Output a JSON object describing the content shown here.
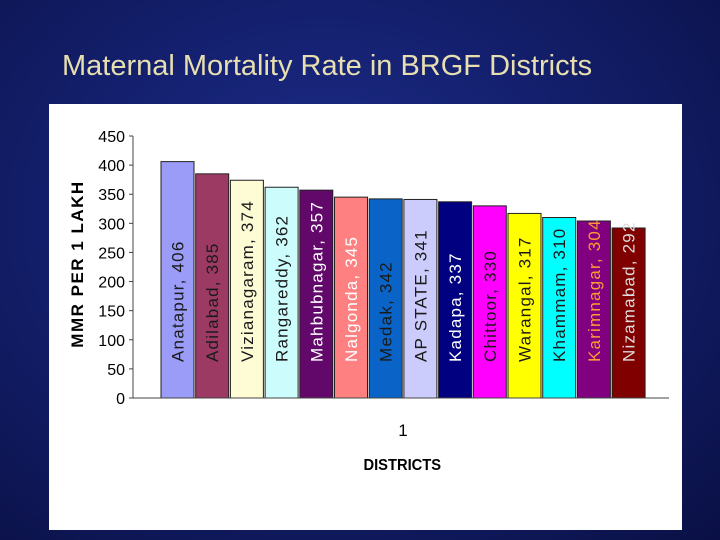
{
  "slide": {
    "title": "Maternal Mortality Rate in BRGF Districts"
  },
  "chart_data": {
    "type": "bar",
    "title": "",
    "xlabel": "DISTRICTS",
    "ylabel": "MMR PER 1 LAKH",
    "x_tick": "1",
    "ylim": [
      0,
      450
    ],
    "yticks": [
      0,
      50,
      100,
      150,
      200,
      250,
      300,
      350,
      400,
      450
    ],
    "legend": "none",
    "series": [
      {
        "name": "Anatapur",
        "value": 406,
        "label": "Anatapur, 406",
        "color": "#9b9bf8",
        "label_color": "#1a1a1a"
      },
      {
        "name": "Adilabad",
        "value": 385,
        "label": "Adilabad, 385",
        "color": "#9c3a64",
        "label_color": "#1a1a1a"
      },
      {
        "name": "Vizianagaram",
        "value": 374,
        "label": "Vizianagaram, 374",
        "color": "#fdfcd4",
        "label_color": "#1a1a1a"
      },
      {
        "name": "Rangareddy",
        "value": 362,
        "label": "Rangareddy, 362",
        "color": "#ccfcfc",
        "label_color": "#1a1a1a"
      },
      {
        "name": "Mahbubnagar",
        "value": 357,
        "label": "Mahbubnagar, 357",
        "color": "#62086a",
        "label_color": "#ffffff"
      },
      {
        "name": "Nalgonda",
        "value": 345,
        "label": "Nalgonda, 345",
        "color": "#ff8080",
        "label_color": "#ffffff"
      },
      {
        "name": "Medak",
        "value": 342,
        "label": "Medak, 342",
        "color": "#0a64c8",
        "label_color": "#1a1a1a"
      },
      {
        "name": "AP STATE",
        "value": 341,
        "label": "AP STATE, 341",
        "color": "#ccccfc",
        "label_color": "#1a1a1a"
      },
      {
        "name": "Kadapa",
        "value": 337,
        "label": "Kadapa, 337",
        "color": "#000080",
        "label_color": "#ffffff"
      },
      {
        "name": "Chittoor",
        "value": 330,
        "label": "Chittoor, 330",
        "color": "#ff00ff",
        "label_color": "#1a1a1a"
      },
      {
        "name": "Warangal",
        "value": 317,
        "label": "Warangal, 317",
        "color": "#ffff00",
        "label_color": "#1a1a1a"
      },
      {
        "name": "Khammam",
        "value": 310,
        "label": "Khammam, 310",
        "color": "#00ffff",
        "label_color": "#1a1a1a"
      },
      {
        "name": "Karimnagar",
        "value": 304,
        "label": "Karimnagar, 304",
        "color": "#80007f",
        "label_color": "#ff9933"
      },
      {
        "name": "Nizamabad",
        "value": 292,
        "label": "Nizamabad, 292",
        "color": "#800000",
        "label_color": "#dddddd"
      }
    ]
  }
}
